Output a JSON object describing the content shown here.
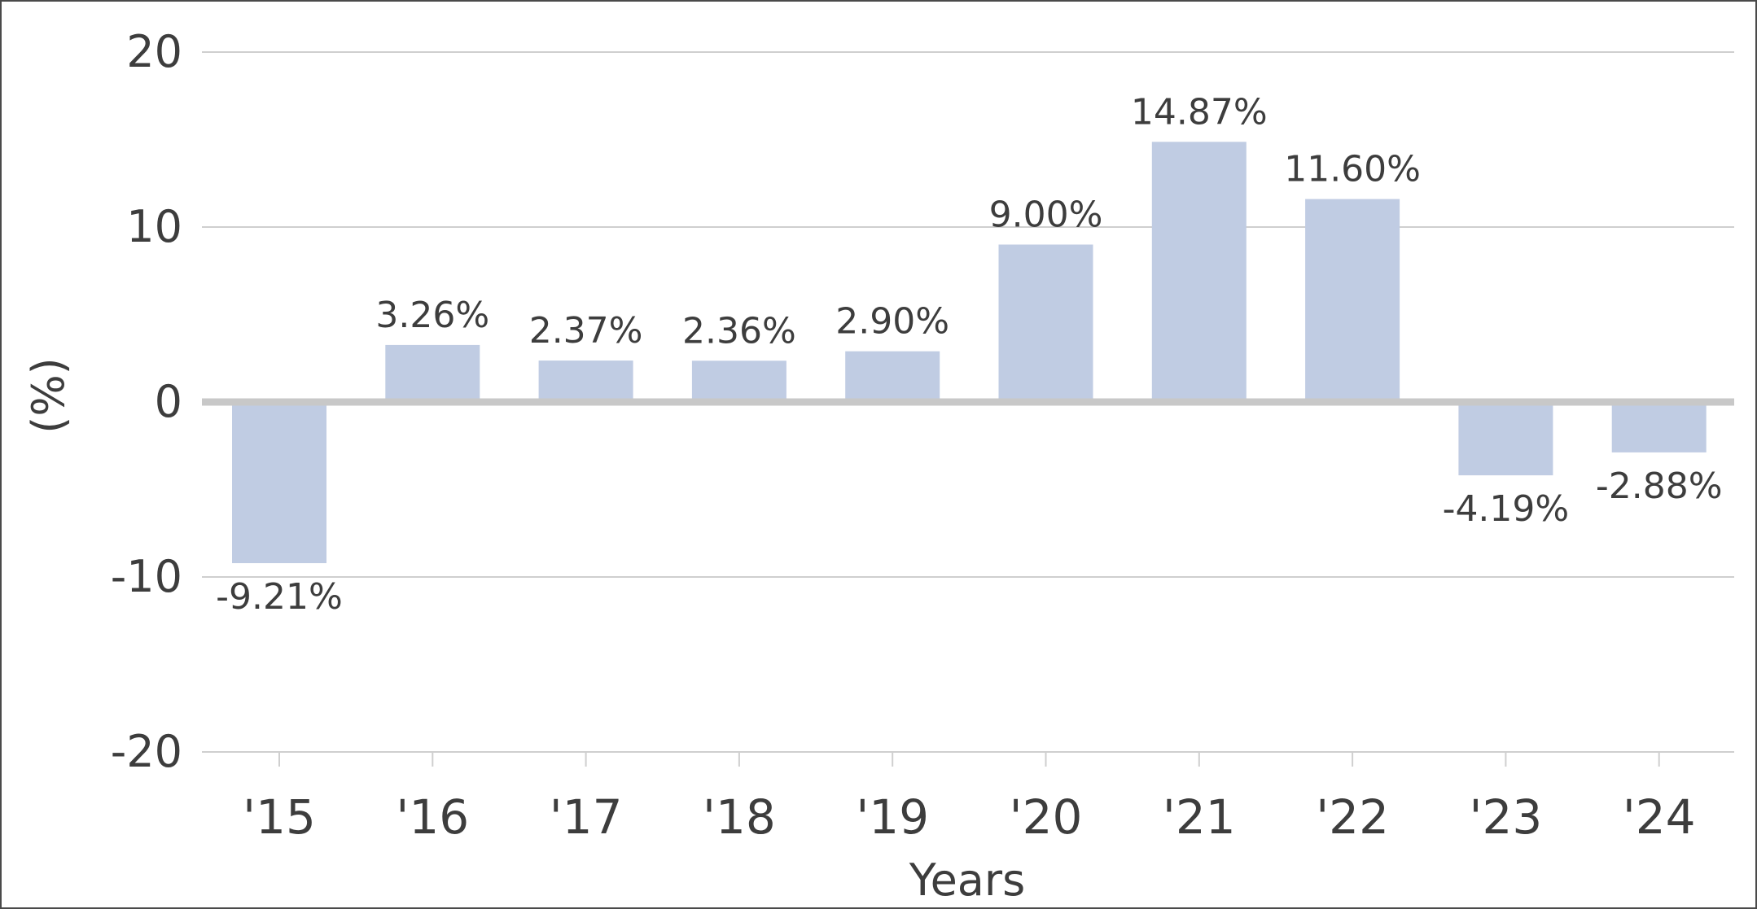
{
  "chart_data": {
    "type": "bar",
    "title": "",
    "xlabel": "Years",
    "ylabel": "(%)",
    "categories": [
      "'15",
      "'16",
      "'17",
      "'18",
      "'19",
      "'20",
      "'21",
      "'22",
      "'23",
      "'24"
    ],
    "values": [
      -9.21,
      3.26,
      2.37,
      2.36,
      2.9,
      9.0,
      14.87,
      11.6,
      -4.19,
      -2.88
    ],
    "data_labels": [
      "-9.21%",
      "3.26%",
      "2.37%",
      "2.36%",
      "2.90%",
      "9.00%",
      "14.87%",
      "11.60%",
      "-4.19%",
      "-2.88%"
    ],
    "ylim": [
      -20,
      20
    ],
    "yticks": [
      20,
      10,
      0,
      -10,
      -20
    ],
    "grid": true,
    "legend": "none",
    "bar_color": "#c0cce3",
    "grid_color": "#cfcfcf",
    "zero_line_color": "#c8c8c8",
    "text_color": "#3d3d3d"
  }
}
